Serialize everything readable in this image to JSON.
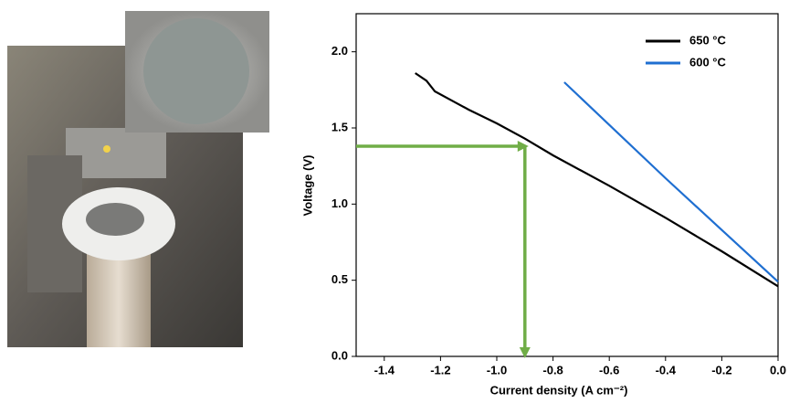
{
  "chart_data": {
    "type": "line",
    "xlabel": "Current density (A cm⁻²)",
    "ylabel": "Voltage (V)",
    "xlim": [
      -1.5,
      0
    ],
    "ylim": [
      0,
      2.25
    ],
    "xticks": [
      -1.4,
      -1.2,
      {
        "value": -1,
        "label": "-1.0"
      },
      -0.8,
      -0.6,
      -0.4,
      -0.2,
      {
        "value": 0,
        "label": "0.0"
      }
    ],
    "yticks": [
      {
        "value": 0,
        "label": "0.0"
      },
      0.5,
      {
        "value": 1,
        "label": "1.0"
      },
      1.5,
      {
        "value": 2,
        "label": "2.0"
      }
    ],
    "legend": "upper right",
    "series": [
      {
        "name": "650 °C",
        "color": "#000000",
        "x": [
          -1.29,
          -1.25,
          -1.22,
          -1.15,
          -1.1,
          -1.0,
          -0.9,
          -0.8,
          -0.6,
          -0.4,
          -0.2,
          0.0
        ],
        "values": [
          1.86,
          1.81,
          1.74,
          1.67,
          1.62,
          1.53,
          1.43,
          1.32,
          1.12,
          0.91,
          0.69,
          0.46
        ]
      },
      {
        "name": "600 °C",
        "color": "#1f6fd1",
        "x": [
          -0.76,
          -0.6,
          -0.4,
          -0.2,
          0.0
        ],
        "values": [
          1.8,
          1.52,
          1.17,
          0.83,
          0.49
        ]
      }
    ],
    "guide": {
      "x": -0.9,
      "y": 1.38,
      "color": "#70ad47"
    }
  }
}
